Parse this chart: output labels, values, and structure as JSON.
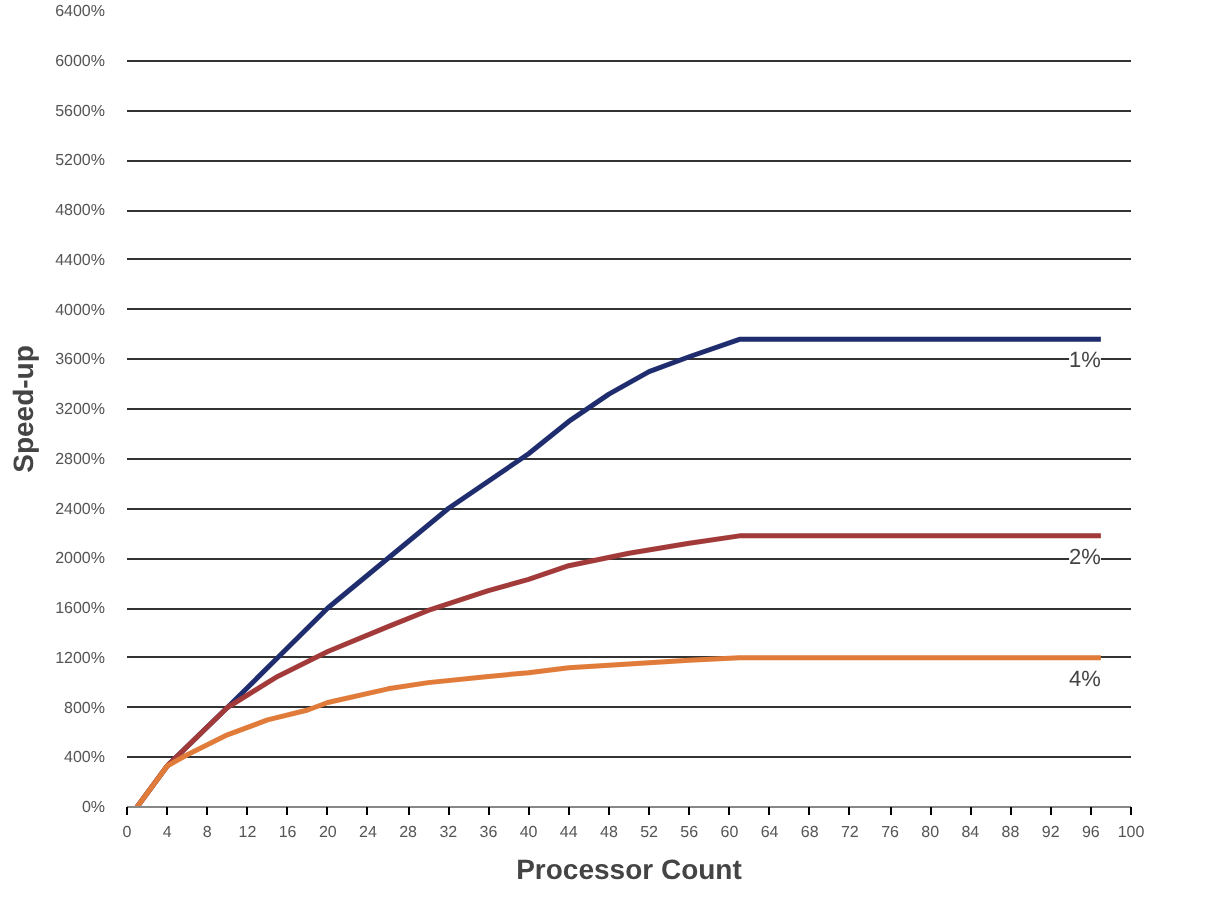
{
  "chart_data": {
    "type": "line",
    "xlabel": "Processor Count",
    "ylabel": "Speed-up",
    "xlim": [
      0,
      100
    ],
    "xticks": [
      0,
      4,
      8,
      12,
      16,
      20,
      24,
      28,
      32,
      36,
      40,
      44,
      48,
      52,
      56,
      60,
      64,
      68,
      72,
      76,
      80,
      84,
      88,
      92,
      96,
      100
    ],
    "ylim": [
      0,
      6400
    ],
    "yticks": [
      {
        "value": 0,
        "label": "0%"
      },
      {
        "value": 400,
        "label": "400%"
      },
      {
        "value": 800,
        "label": "800%"
      },
      {
        "value": 1200,
        "label": "1200%"
      },
      {
        "value": 1600,
        "label": "1600%"
      },
      {
        "value": 2000,
        "label": "2000%"
      },
      {
        "value": 2400,
        "label": "2400%"
      },
      {
        "value": 2800,
        "label": "2800%"
      },
      {
        "value": 3200,
        "label": "3200%"
      },
      {
        "value": 3600,
        "label": "3600%"
      },
      {
        "value": 4000,
        "label": "4000%"
      },
      {
        "value": 4400,
        "label": "4400%"
      },
      {
        "value": 4800,
        "label": "4800%"
      },
      {
        "value": 5200,
        "label": "5200%"
      },
      {
        "value": 5600,
        "label": "5600%"
      },
      {
        "value": 6000,
        "label": "6000%"
      },
      {
        "value": 6400,
        "label": "6400%"
      }
    ],
    "grid": "y",
    "marker": "none",
    "line_style": "solid",
    "series": [
      {
        "name": "1%",
        "color": "#1f2d6e",
        "x": [
          1,
          4,
          10,
          15,
          20,
          26,
          32,
          40,
          44,
          48,
          52,
          56,
          61,
          97
        ],
        "values": [
          0,
          330,
          800,
          1200,
          1600,
          2000,
          2400,
          2840,
          3100,
          3320,
          3500,
          3620,
          3760,
          3760
        ]
      },
      {
        "name": "2%",
        "color": "#a33a3a",
        "x": [
          1,
          4,
          10,
          15,
          20,
          26,
          30,
          36,
          40,
          44,
          50,
          56,
          61,
          97
        ],
        "values": [
          0,
          330,
          800,
          1050,
          1250,
          1450,
          1580,
          1740,
          1830,
          1940,
          2040,
          2120,
          2180,
          2180
        ]
      },
      {
        "name": "4%",
        "color": "#e07b39",
        "x": [
          1,
          4,
          6,
          10,
          14,
          18,
          20,
          26,
          30,
          36,
          40,
          44,
          50,
          56,
          61,
          97
        ],
        "values": [
          0,
          330,
          420,
          580,
          700,
          780,
          840,
          950,
          1000,
          1050,
          1080,
          1120,
          1150,
          1180,
          1200,
          1200
        ]
      }
    ]
  }
}
